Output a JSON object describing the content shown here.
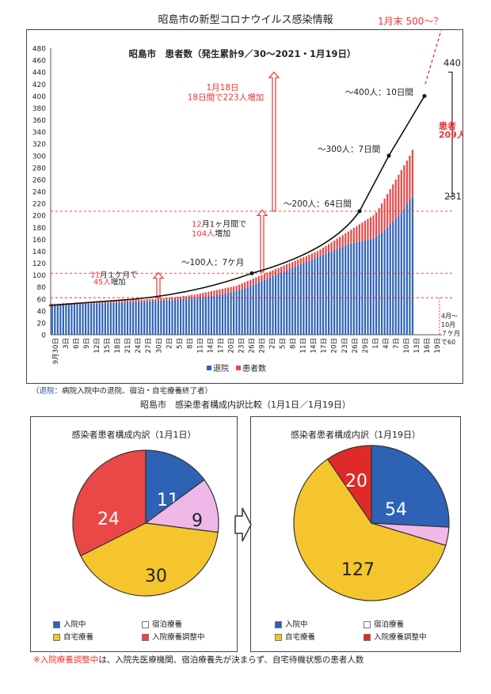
{
  "page_title": "昭島市の新型コロナウイルス感染情報",
  "subtitle": "昭島市　感染患者構成内訳比較（1月1日／1月19日）",
  "note": {
    "prefix": "（",
    "term": "退院",
    "text": "：病院入院中の退院、宿泊・自宅療養終了者）"
  },
  "footnote": {
    "mark": "※",
    "term": "入院療養調整中",
    "text": "は、入院先医療機関、宿泊療養先が決まらず、自宅待機状態の患者人数"
  },
  "colors": {
    "blue": "#2e62b5",
    "red": "#ea4747",
    "pink": "#f0b7e9",
    "yellow": "#f5c52d",
    "dark_red": "#e02a2a"
  },
  "chart_data": [
    {
      "type": "bar",
      "title": "昭島市　患者数（発生累計9／30〜2021・1月19日）",
      "ylim": [
        0,
        480
      ],
      "yticks": [
        "0",
        "20",
        "40",
        "60",
        "80",
        "100",
        "120",
        "140",
        "160",
        "180",
        "200",
        "220",
        "240",
        "260",
        "280",
        "300",
        "320",
        "340",
        "360",
        "380",
        "400",
        "420",
        "440",
        "460",
        "480"
      ],
      "xticks": [
        "9月30日",
        "3日",
        "6日",
        "9日",
        "12日",
        "15日",
        "18日",
        "21日",
        "24日",
        "27日",
        "30日",
        "2日",
        "5日",
        "8日",
        "11日",
        "14日",
        "17日",
        "20日",
        "23日",
        "26日",
        "29日",
        "2日",
        "5日",
        "8日",
        "11日",
        "14日",
        "17日",
        "20日",
        "23日",
        "26日",
        "29日",
        "1日",
        "4日",
        "7日",
        "10日",
        "13日",
        "16日",
        "19日"
      ],
      "legend": [
        "退院",
        "患者数"
      ],
      "series": [
        {
          "name": "退院",
          "values": [
            50,
            50,
            50,
            50,
            50,
            51,
            51,
            51,
            51,
            51,
            51,
            52,
            52,
            52,
            52,
            52,
            52,
            53,
            53,
            53,
            53,
            54,
            54,
            54,
            54,
            54,
            55,
            55,
            55,
            55,
            55,
            56,
            56,
            56,
            56,
            56,
            57,
            57,
            57,
            57,
            57,
            58,
            58,
            58,
            59,
            59,
            59,
            60,
            60,
            61,
            61,
            62,
            62,
            63,
            63,
            64,
            65,
            65,
            66,
            67,
            67,
            68,
            69,
            70,
            71,
            72,
            73,
            75,
            76,
            78,
            80,
            82,
            84,
            86,
            88,
            90,
            92,
            94,
            96,
            98,
            100,
            102,
            104,
            106,
            108,
            110,
            112,
            114,
            116,
            118,
            120,
            122,
            124,
            126,
            128,
            130,
            132,
            134,
            136,
            138,
            140,
            142,
            144,
            146,
            148,
            150,
            152,
            153,
            154,
            155,
            156,
            157,
            158,
            159,
            160,
            162,
            165,
            168,
            171,
            175,
            180,
            185,
            190,
            195,
            200,
            205,
            212,
            220,
            226,
            231
          ]
        },
        {
          "name": "患者数",
          "values": [
            52,
            52,
            52,
            52,
            53,
            53,
            53,
            53,
            54,
            54,
            54,
            54,
            55,
            55,
            55,
            55,
            56,
            56,
            56,
            56,
            57,
            57,
            57,
            57,
            58,
            58,
            58,
            58,
            58,
            59,
            59,
            59,
            59,
            59,
            60,
            60,
            60,
            60,
            61,
            61,
            61,
            62,
            62,
            63,
            63,
            64,
            64,
            65,
            65,
            66,
            67,
            67,
            68,
            69,
            70,
            71,
            72,
            73,
            74,
            75,
            76,
            77,
            78,
            79,
            80,
            81,
            82,
            84,
            86,
            88,
            90,
            92,
            94,
            96,
            98,
            100,
            102,
            104,
            106,
            108,
            110,
            112,
            114,
            116,
            118,
            120,
            122,
            124,
            126,
            128,
            130,
            132,
            134,
            136,
            138,
            140,
            143,
            146,
            149,
            152,
            155,
            158,
            161,
            164,
            167,
            170,
            173,
            176,
            179,
            182,
            185,
            188,
            191,
            194,
            197,
            200,
            205,
            212,
            220,
            228,
            236,
            244,
            252,
            260,
            268,
            276,
            284,
            292,
            300,
            310,
            320,
            332,
            344,
            358,
            372,
            386,
            400,
            412,
            424,
            440
          ]
        }
      ],
      "annotations": {
        "nov": {
          "month": "11",
          "suffix": "月１ケ月で",
          "count": "45人",
          "end": "増加"
        },
        "dec": {
          "month": "12",
          "suffix": "月1ヶ月間で",
          "count": "104人",
          "end": "増加"
        },
        "jan18_date": "1月18日",
        "jan18_text": "18日間で223人増加",
        "step100": "〜100人：7ケ月",
        "step200": "〜200人：64日間",
        "step300": "〜300人：7日間",
        "step400": "〜400人：10日間",
        "forecast": "1月末  500〜？",
        "total": "440",
        "recovered": "231",
        "patients_label": "患者",
        "patients_count": "209人",
        "apr_oct": "4月〜10月７ケ月で60人"
      }
    },
    {
      "type": "pie",
      "title": "感染者患者構成内訳（1月1日）",
      "slices": [
        {
          "name": "入院中",
          "value": 11,
          "color": "#2e62b5"
        },
        {
          "name": "宿泊療養",
          "value": 9,
          "color": "#f0b7e9"
        },
        {
          "name": "自宅療養",
          "value": 30,
          "color": "#f5c52d"
        },
        {
          "name": "入院療養調整中",
          "value": 24,
          "color": "#ea4747"
        }
      ]
    },
    {
      "type": "pie",
      "title": "感染者患者構成内訳（1月19日）",
      "slices": [
        {
          "name": "入院中",
          "value": 54,
          "color": "#2e62b5"
        },
        {
          "name": "宿泊療養",
          "value": 8,
          "color": "#f0b7e9"
        },
        {
          "name": "自宅療養",
          "value": 127,
          "color": "#f5c52d"
        },
        {
          "name": "入院療養調整中",
          "value": 20,
          "color": "#e02a2a"
        }
      ]
    }
  ],
  "pie_legend": [
    "入院中",
    "宿泊療養",
    "自宅療養",
    "入院療養調整中"
  ]
}
